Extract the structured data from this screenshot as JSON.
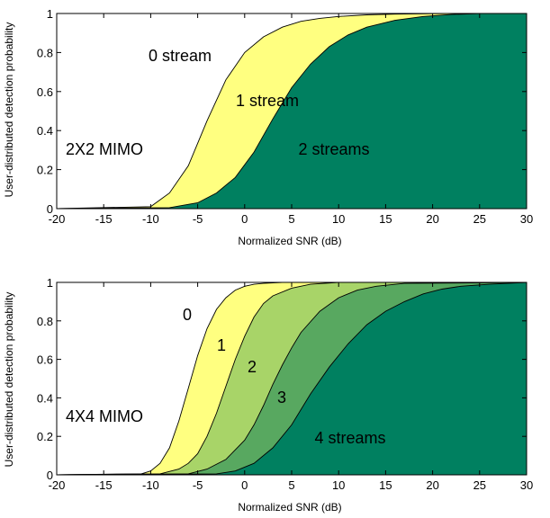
{
  "chart_data": [
    {
      "type": "area",
      "xlabel": "Normalized SNR (dB)",
      "ylabel": "User-distributed detection probability",
      "xlim": [
        -20,
        30
      ],
      "ylim": [
        0,
        1
      ],
      "xticks": [
        -20,
        -15,
        -10,
        -5,
        0,
        5,
        10,
        15,
        20,
        25,
        30
      ],
      "yticks": [
        0,
        0.2,
        0.4,
        0.6,
        0.8,
        1
      ],
      "ytick_labels": [
        "0",
        "0.2",
        "0.4",
        "0.6",
        "0.8",
        "1"
      ],
      "grid": false,
      "annotations": [
        "0 stream",
        "1 stream",
        "2 streams",
        "2X2 MIMO"
      ],
      "region_colors": [
        "#ffff80",
        "#008060"
      ],
      "boundaries": [
        {
          "x": [
            -20,
            -10,
            -8,
            -6,
            -4,
            -2,
            0,
            2,
            4,
            6,
            8,
            10,
            13,
            16,
            20,
            25,
            30
          ],
          "y": [
            0,
            0.01,
            0.08,
            0.22,
            0.45,
            0.66,
            0.8,
            0.88,
            0.93,
            0.96,
            0.975,
            0.985,
            0.993,
            0.997,
            0.999,
            1,
            1
          ]
        },
        {
          "x": [
            -20,
            -8,
            -5,
            -3,
            -1,
            1,
            3,
            5,
            7,
            9,
            11,
            13,
            16,
            19,
            22,
            25,
            30
          ],
          "y": [
            0,
            0.005,
            0.03,
            0.08,
            0.16,
            0.29,
            0.46,
            0.62,
            0.74,
            0.83,
            0.89,
            0.93,
            0.965,
            0.985,
            0.995,
            1,
            1
          ]
        }
      ]
    },
    {
      "type": "area",
      "xlabel": "Normalized SNR (dB)",
      "ylabel": "User-distributed detection probability",
      "xlim": [
        -20,
        30
      ],
      "ylim": [
        0,
        1
      ],
      "xticks": [
        -20,
        -15,
        -10,
        -5,
        0,
        5,
        10,
        15,
        20,
        25,
        30
      ],
      "yticks": [
        0,
        0.2,
        0.4,
        0.6,
        0.8,
        1
      ],
      "ytick_labels": [
        "0",
        "0.2",
        "0.4",
        "0.6",
        "0.8",
        "1"
      ],
      "grid": false,
      "annotations": [
        "0",
        "1",
        "2",
        "3",
        "4 streams",
        "4X4 MIMO"
      ],
      "region_colors": [
        "#ffff80",
        "#a8d468",
        "#58a860",
        "#008060"
      ],
      "boundaries": [
        {
          "x": [
            -20,
            -11,
            -10,
            -9,
            -8,
            -7,
            -6,
            -5,
            -4,
            -3,
            -2,
            -1,
            0,
            1,
            2,
            4,
            6,
            30
          ],
          "y": [
            0,
            0.005,
            0.02,
            0.06,
            0.14,
            0.28,
            0.45,
            0.62,
            0.76,
            0.86,
            0.92,
            0.96,
            0.98,
            0.99,
            0.995,
            1,
            1,
            1
          ]
        },
        {
          "x": [
            -20,
            -9,
            -7,
            -6,
            -5,
            -4,
            -3,
            -2,
            -1,
            0,
            1,
            2,
            3,
            5,
            7,
            10,
            30
          ],
          "y": [
            0,
            0.005,
            0.03,
            0.06,
            0.11,
            0.2,
            0.32,
            0.46,
            0.6,
            0.72,
            0.82,
            0.89,
            0.93,
            0.97,
            0.99,
            1,
            1
          ]
        },
        {
          "x": [
            -20,
            -6,
            -4,
            -2,
            0,
            1,
            2,
            3,
            4,
            5,
            6,
            8,
            10,
            12,
            14,
            17,
            30
          ],
          "y": [
            0,
            0.005,
            0.03,
            0.08,
            0.18,
            0.26,
            0.36,
            0.47,
            0.57,
            0.66,
            0.74,
            0.85,
            0.92,
            0.96,
            0.98,
            0.995,
            1
          ]
        },
        {
          "x": [
            -20,
            -3,
            -1,
            1,
            3,
            5,
            7,
            9,
            11,
            13,
            15,
            17,
            19,
            21,
            23,
            26,
            30
          ],
          "y": [
            0,
            0.005,
            0.02,
            0.06,
            0.14,
            0.26,
            0.42,
            0.56,
            0.68,
            0.78,
            0.85,
            0.9,
            0.94,
            0.965,
            0.98,
            0.99,
            1
          ]
        }
      ]
    }
  ]
}
